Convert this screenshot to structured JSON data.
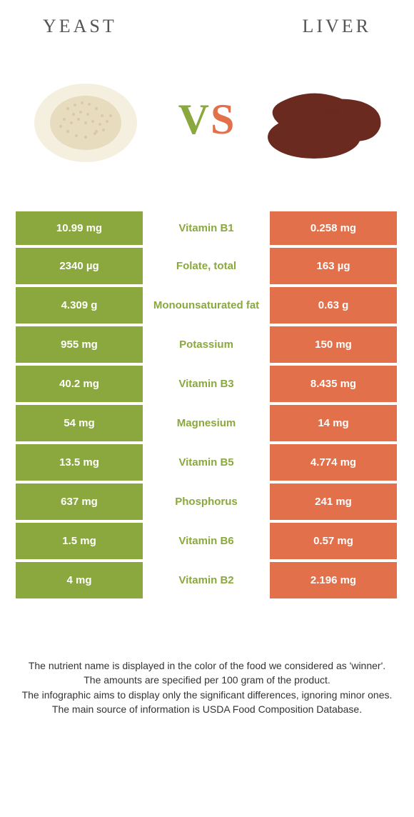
{
  "colors": {
    "green": "#8aa83e",
    "orange": "#e2704a",
    "green_text": "#8aa83e",
    "white": "#ffffff"
  },
  "header": {
    "left_title": "YEAST",
    "right_title": "LIVER"
  },
  "vs": {
    "v": "V",
    "s": "S"
  },
  "rows": [
    {
      "left": "10.99 mg",
      "label": "Vitamin B1",
      "right": "0.258 mg",
      "winner": "left"
    },
    {
      "left": "2340 µg",
      "label": "Folate, total",
      "right": "163 µg",
      "winner": "left"
    },
    {
      "left": "4.309 g",
      "label": "Monounsaturated fat",
      "right": "0.63 g",
      "winner": "left"
    },
    {
      "left": "955 mg",
      "label": "Potassium",
      "right": "150 mg",
      "winner": "left"
    },
    {
      "left": "40.2 mg",
      "label": "Vitamin B3",
      "right": "8.435 mg",
      "winner": "left"
    },
    {
      "left": "54 mg",
      "label": "Magnesium",
      "right": "14 mg",
      "winner": "left"
    },
    {
      "left": "13.5 mg",
      "label": "Vitamin B5",
      "right": "4.774 mg",
      "winner": "left"
    },
    {
      "left": "637 mg",
      "label": "Phosphorus",
      "right": "241 mg",
      "winner": "left"
    },
    {
      "left": "1.5 mg",
      "label": "Vitamin B6",
      "right": "0.57 mg",
      "winner": "left"
    },
    {
      "left": "4 mg",
      "label": "Vitamin B2",
      "right": "2.196 mg",
      "winner": "left"
    }
  ],
  "footer": {
    "line1": "The nutrient name is displayed in the color of the food we considered as 'winner'.",
    "line2": "The amounts are specified per 100 gram of the product.",
    "line3": "The infographic aims to display only the significant differences, ignoring minor ones.",
    "line4": "The main source of information is USDA Food Composition Database."
  }
}
